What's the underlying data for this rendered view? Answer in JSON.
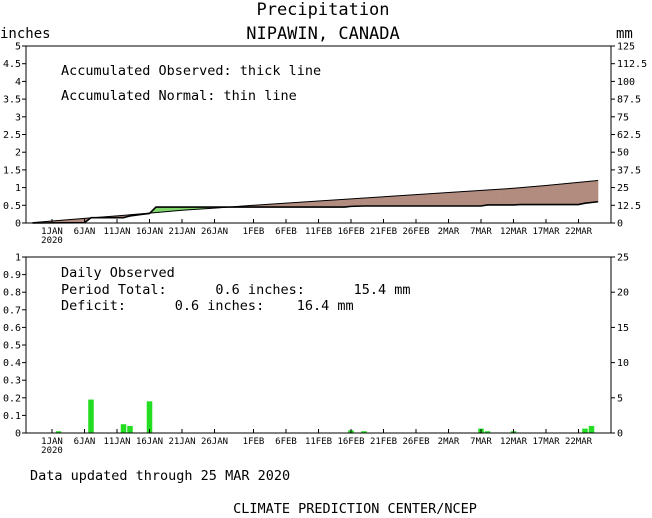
{
  "header": {
    "title": "Precipitation",
    "subtitle": "NIPAWIN,  CANADA",
    "left_unit": "inches",
    "right_unit": "mm"
  },
  "x_axis": {
    "ticks": [
      {
        "day": 0,
        "label": "1JAN"
      },
      {
        "day": 5,
        "label": "6JAN"
      },
      {
        "day": 10,
        "label": "11JAN"
      },
      {
        "day": 15,
        "label": "16JAN"
      },
      {
        "day": 20,
        "label": "21JAN"
      },
      {
        "day": 25,
        "label": "26JAN"
      },
      {
        "day": 31,
        "label": "1FEB"
      },
      {
        "day": 36,
        "label": "6FEB"
      },
      {
        "day": 41,
        "label": "11FEB"
      },
      {
        "day": 46,
        "label": "16FEB"
      },
      {
        "day": 51,
        "label": "21FEB"
      },
      {
        "day": 56,
        "label": "26FEB"
      },
      {
        "day": 61,
        "label": "2MAR"
      },
      {
        "day": 66,
        "label": "7MAR"
      },
      {
        "day": 71,
        "label": "12MAR"
      },
      {
        "day": 76,
        "label": "17MAR"
      },
      {
        "day": 81,
        "label": "22MAR"
      }
    ],
    "year_label": "2020",
    "range_days": [
      -4,
      86
    ]
  },
  "chart_data": [
    {
      "type": "area",
      "panel": "accumulated",
      "annotations": [
        "Accumulated Observed: thick line",
        "Accumulated Normal: thin line"
      ],
      "y_left": {
        "ylim": [
          0,
          5
        ],
        "ticks": [
          0,
          0.5,
          1,
          1.5,
          2,
          2.5,
          3,
          3.5,
          4,
          4.5,
          5
        ]
      },
      "y_right": {
        "ylim": [
          0,
          125
        ],
        "ticks": [
          0,
          12.5,
          25,
          37.5,
          50,
          62.5,
          75,
          87.5,
          100,
          112.5,
          125
        ]
      },
      "x_dates": "days since 1 JAN 2020 = 0",
      "series": [
        {
          "name": "Accumulated Observed",
          "points": [
            [
              -3,
              0
            ],
            [
              5,
              0.01
            ],
            [
              6,
              0.15
            ],
            [
              11,
              0.15
            ],
            [
              12,
              0.2
            ],
            [
              14,
              0.25
            ],
            [
              15,
              0.27
            ],
            [
              16,
              0.45
            ],
            [
              45,
              0.45
            ],
            [
              46,
              0.47
            ],
            [
              48,
              0.48
            ],
            [
              66,
              0.48
            ],
            [
              67,
              0.51
            ],
            [
              71,
              0.51
            ],
            [
              72,
              0.52
            ],
            [
              81,
              0.52
            ],
            [
              82,
              0.56
            ],
            [
              84,
              0.6
            ]
          ]
        },
        {
          "name": "Accumulated Normal",
          "points": [
            [
              -3,
              0.01
            ],
            [
              5,
              0.13
            ],
            [
              10,
              0.2
            ],
            [
              15,
              0.28
            ],
            [
              20,
              0.36
            ],
            [
              25,
              0.42
            ],
            [
              31,
              0.5
            ],
            [
              41,
              0.62
            ],
            [
              51,
              0.74
            ],
            [
              61,
              0.86
            ],
            [
              71,
              0.98
            ],
            [
              76,
              1.06
            ],
            [
              84,
              1.2
            ]
          ]
        }
      ],
      "fill_colors": {
        "deficit": "#b38c80",
        "surplus": "#7fd66b"
      },
      "colors": {
        "observed": "#000000",
        "normal": "#000000"
      }
    },
    {
      "type": "bar",
      "panel": "daily",
      "y_left": {
        "ylim": [
          0,
          1
        ],
        "ticks": [
          0,
          0.1,
          0.2,
          0.3,
          0.4,
          0.5,
          0.6,
          0.7,
          0.8,
          0.9,
          1
        ]
      },
      "y_right": {
        "ylim": [
          0,
          25
        ],
        "ticks": [
          0,
          5,
          10,
          15,
          20,
          25
        ]
      },
      "bars": [
        {
          "day": 1,
          "value": 0.01
        },
        {
          "day": 6,
          "value": 0.19
        },
        {
          "day": 11,
          "value": 0.05
        },
        {
          "day": 12,
          "value": 0.04
        },
        {
          "day": 15,
          "value": 0.18
        },
        {
          "day": 46,
          "value": 0.015
        },
        {
          "day": 48,
          "value": 0.01
        },
        {
          "day": 66,
          "value": 0.025
        },
        {
          "day": 67,
          "value": 0.01
        },
        {
          "day": 71,
          "value": 0.01
        },
        {
          "day": 82,
          "value": 0.025
        },
        {
          "day": 83,
          "value": 0.04
        }
      ],
      "bar_color": "#22dd22"
    }
  ],
  "daily_summary": {
    "heading": "Daily Observed",
    "period_total": "Period Total:      0.6 inches:      15.4 mm",
    "deficit": "Deficit:      0.6 inches:    16.4 mm"
  },
  "footer": {
    "updated": "Data updated through 25 MAR 2020",
    "credit": "CLIMATE PREDICTION CENTER/NCEP"
  }
}
